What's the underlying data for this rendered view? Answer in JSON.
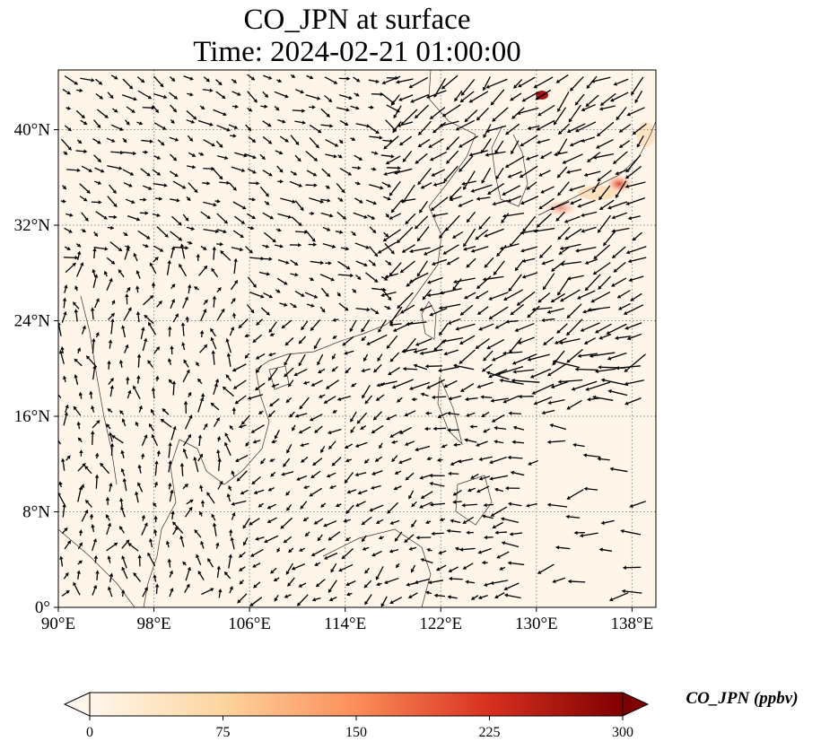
{
  "title": {
    "line1": "CO_JPN at surface",
    "line2": "Time: 2024-02-21 01:00:00"
  },
  "map": {
    "extent": {
      "lon_min": 90,
      "lon_max": 140,
      "lat_min": 0,
      "lat_max": 45
    },
    "x_ticks": [
      {
        "value": 90,
        "label": "90°E"
      },
      {
        "value": 98,
        "label": "98°E"
      },
      {
        "value": 106,
        "label": "106°E"
      },
      {
        "value": 114,
        "label": "114°E"
      },
      {
        "value": 122,
        "label": "122°E"
      },
      {
        "value": 130,
        "label": "130°E"
      },
      {
        "value": 138,
        "label": "138°E"
      }
    ],
    "y_ticks": [
      {
        "value": 0,
        "label": "0°"
      },
      {
        "value": 8,
        "label": "8°N"
      },
      {
        "value": 16,
        "label": "16°N"
      },
      {
        "value": 24,
        "label": "24°N"
      },
      {
        "value": 32,
        "label": "32°N"
      },
      {
        "value": 40,
        "label": "40°N"
      }
    ],
    "gridlines": "dotted",
    "background_color": "#fff5e9",
    "wind_vectors": "black arrows"
  },
  "colorbar": {
    "label": "CO_JPN (ppbv)",
    "ticks": [
      "0",
      "75",
      "150",
      "225",
      "300"
    ],
    "min": 0,
    "max": 300,
    "colormap": "OrRd",
    "colors": [
      "#fff7ec",
      "#fdd49e",
      "#fc8d59",
      "#d7301f",
      "#7f0000"
    ]
  }
}
